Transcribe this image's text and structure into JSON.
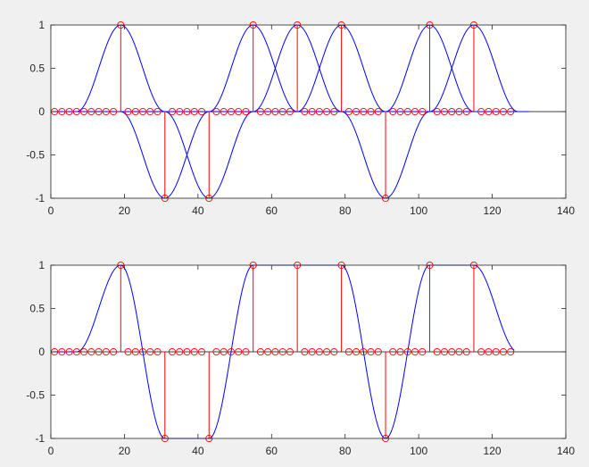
{
  "chart_data": [
    {
      "type": "line",
      "xlim": [
        0,
        140
      ],
      "ylim": [
        -1,
        1
      ],
      "xticks": [
        0,
        20,
        40,
        60,
        80,
        100,
        120,
        140
      ],
      "yticks": [
        -1,
        -0.5,
        0,
        0.5,
        1
      ],
      "xtick_labels": [
        "0",
        "20",
        "40",
        "60",
        "80",
        "100",
        "120",
        "140"
      ],
      "ytick_labels": [
        "-1",
        "-0.5",
        "0",
        "0.5",
        "1"
      ],
      "grid": false,
      "colors": {
        "pulses": "#0000ff",
        "stems": "#ff0000",
        "markers": "#ff0000",
        "background": "#ffffff"
      },
      "stems": {
        "x_start": 1,
        "x_step": 2,
        "x_end": 125,
        "nonzero": [
          {
            "x": 19,
            "y": 1
          },
          {
            "x": 31,
            "y": -1
          },
          {
            "x": 43,
            "y": -1
          },
          {
            "x": 55,
            "y": 1
          },
          {
            "x": 67,
            "y": 1
          },
          {
            "x": 79,
            "y": 1
          },
          {
            "x": 91,
            "y": -1
          },
          {
            "x": 103,
            "y": 1
          },
          {
            "x": 115,
            "y": 1
          }
        ]
      },
      "pulses": {
        "shape": "raised-cosine",
        "half_width": 12,
        "centers": [
          19,
          31,
          43,
          55,
          67,
          79,
          91,
          103,
          115
        ],
        "amplitudes": [
          1,
          -1,
          -1,
          1,
          1,
          1,
          -1,
          1,
          1
        ],
        "x_range": [
          1,
          130
        ]
      }
    },
    {
      "type": "line",
      "xlim": [
        0,
        140
      ],
      "ylim": [
        -1,
        1
      ],
      "xticks": [
        0,
        20,
        40,
        60,
        80,
        100,
        120,
        140
      ],
      "yticks": [
        -1,
        -0.5,
        0,
        0.5,
        1
      ],
      "xtick_labels": [
        "0",
        "20",
        "40",
        "60",
        "80",
        "100",
        "120",
        "140"
      ],
      "ytick_labels": [
        "-1",
        "-0.5",
        "0",
        "0.5",
        "1"
      ],
      "grid": false,
      "colors": {
        "pulses": "#0000ff",
        "stems": "#ff0000",
        "markers": "#ff0000",
        "background": "#ffffff"
      },
      "stems": {
        "x_start": 1,
        "x_step": 2,
        "x_end": 125,
        "nonzero": [
          {
            "x": 19,
            "y": 1
          },
          {
            "x": 31,
            "y": -1
          },
          {
            "x": 43,
            "y": -1
          },
          {
            "x": 55,
            "y": 1
          },
          {
            "x": 67,
            "y": 1
          },
          {
            "x": 79,
            "y": 1
          },
          {
            "x": 91,
            "y": -1
          },
          {
            "x": 103,
            "y": 1
          },
          {
            "x": 115,
            "y": 1
          }
        ]
      },
      "pulses": {
        "shape": "raised-cosine-sum",
        "half_width": 12,
        "centers": [
          19,
          31,
          43,
          55,
          67,
          79,
          91,
          103,
          115
        ],
        "amplitudes": [
          1,
          -1,
          -1,
          1,
          1,
          1,
          -1,
          1,
          1
        ],
        "x_range": [
          1,
          126
        ]
      }
    }
  ]
}
